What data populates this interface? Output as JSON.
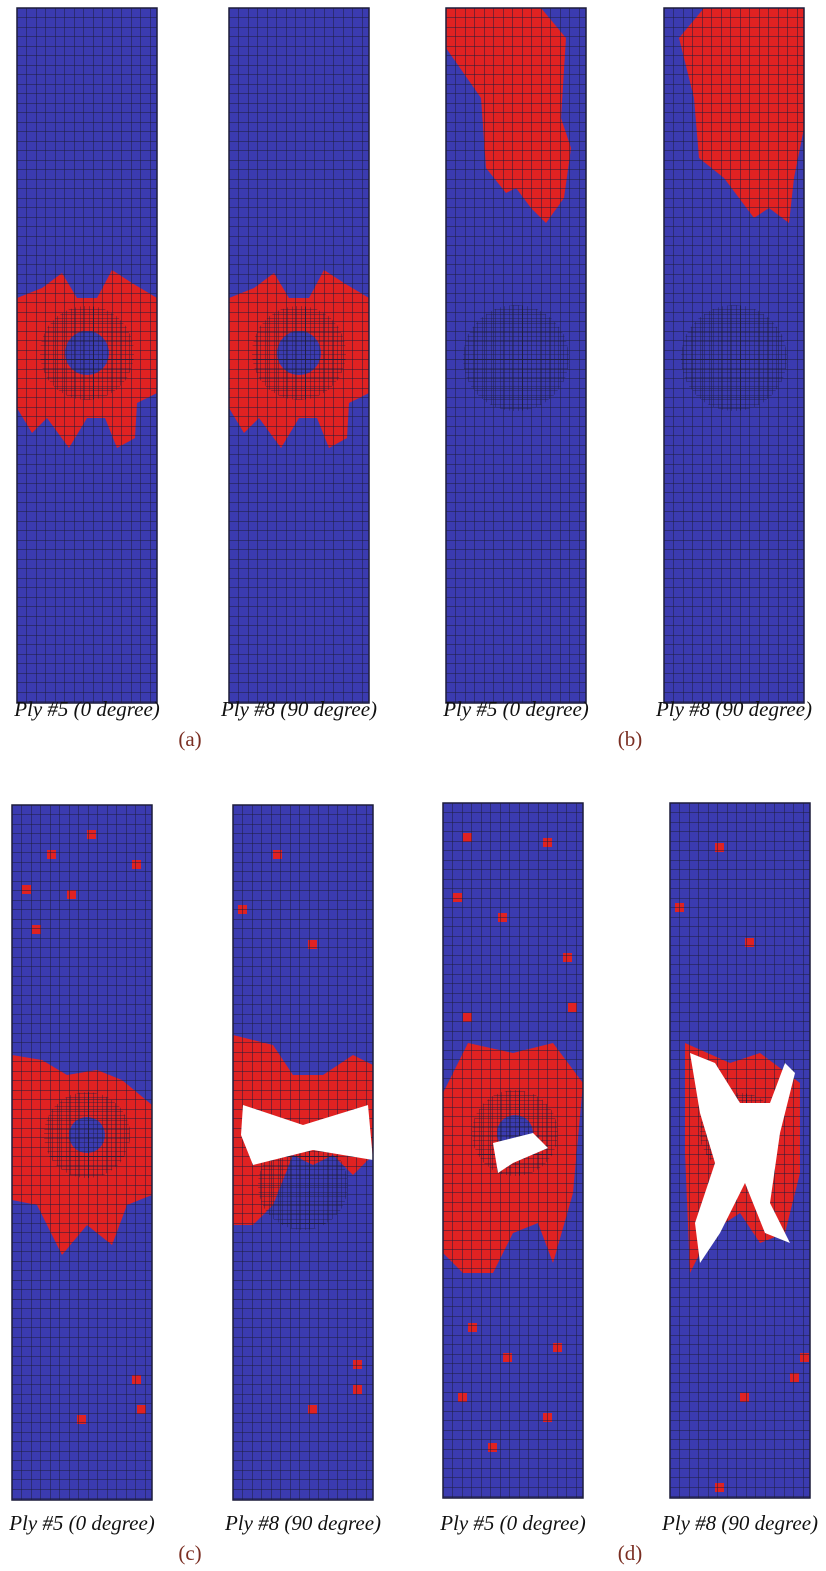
{
  "subfigures": [
    {
      "caption": "(a)",
      "panels": [
        "Ply #5 (0 degree)",
        "Ply #8 (90 degree)"
      ]
    },
    {
      "caption": "(b)",
      "panels": [
        "Ply #5 (0 degree)",
        "Ply #8 (90 degree)"
      ]
    },
    {
      "caption": "(c)",
      "panels": [
        "Ply #5 (0 degree)",
        "Ply #8 (90 degree)"
      ]
    },
    {
      "caption": "(d)",
      "panels": [
        "Ply #5 (0 degree)",
        "Ply #8 (90 degree)"
      ]
    }
  ]
}
